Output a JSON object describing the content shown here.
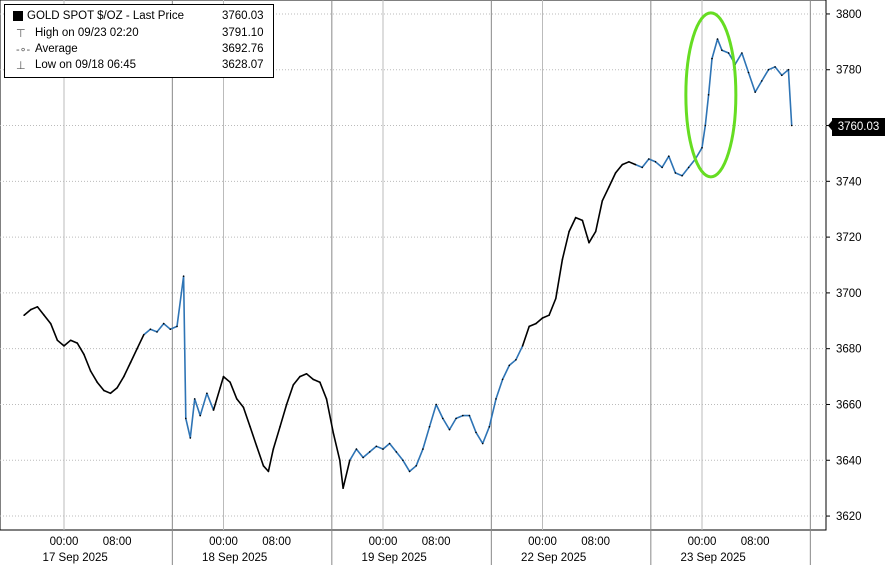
{
  "legend": {
    "series_label": "GOLD SPOT $/OZ - Last Price",
    "last_value": "3760.03",
    "high_label": "High on 09/23 02:20",
    "high_value": "3791.10",
    "avg_label": "Average",
    "avg_value": "3692.76",
    "low_label": "Low on 09/18 06:45",
    "low_value": "3628.07"
  },
  "last_price_tag": "3760.03",
  "colors": {
    "line": "#000000",
    "segment_alt": "#2e74b5",
    "highlight": "#66dd22",
    "grid": "#bbbbbb"
  },
  "chart_data": {
    "type": "line",
    "title": "",
    "xlabel": "",
    "ylabel": "",
    "ylim": [
      3615,
      3805
    ],
    "y_ticks": [
      3620,
      3640,
      3660,
      3680,
      3700,
      3720,
      3740,
      3760,
      3780,
      3800
    ],
    "x_tick_labels": [
      "00:00",
      "08:00",
      "00:00",
      "08:00",
      "00:00",
      "08:00",
      "00:00",
      "08:00",
      "00:00",
      "08:00"
    ],
    "day_labels": [
      "17 Sep 2025",
      "18 Sep 2025",
      "19 Sep 2025",
      "22 Sep 2025",
      "23 Sep 2025"
    ],
    "grid": true,
    "legend_position": "top-left",
    "annotation": "green ellipse around 23 Sep 00:00–04:00 price jump",
    "series": [
      {
        "name": "GOLD SPOT $/OZ - Last Price",
        "points": [
          [
            "09-16 18:00",
            3692
          ],
          [
            "09-16 19:00",
            3694
          ],
          [
            "09-16 20:00",
            3695
          ],
          [
            "09-16 21:00",
            3692
          ],
          [
            "09-16 22:00",
            3689
          ],
          [
            "09-16 23:00",
            3683
          ],
          [
            "09-17 00:00",
            3681
          ],
          [
            "09-17 01:00",
            3683
          ],
          [
            "09-17 02:00",
            3682
          ],
          [
            "09-17 03:00",
            3678
          ],
          [
            "09-17 04:00",
            3672
          ],
          [
            "09-17 05:00",
            3668
          ],
          [
            "09-17 06:00",
            3665
          ],
          [
            "09-17 07:00",
            3664
          ],
          [
            "09-17 08:00",
            3666
          ],
          [
            "09-17 09:00",
            3670
          ],
          [
            "09-17 10:00",
            3675
          ],
          [
            "09-17 11:00",
            3680
          ],
          [
            "09-17 12:00",
            3685
          ],
          [
            "09-17 13:00",
            3687
          ],
          [
            "09-17 14:00",
            3686
          ],
          [
            "09-17 15:00",
            3689
          ],
          [
            "09-17 16:00",
            3687
          ],
          [
            "09-17 17:00",
            3688
          ],
          [
            "09-17 18:00",
            3706
          ],
          [
            "09-17 18:20",
            3655
          ],
          [
            "09-17 19:00",
            3648
          ],
          [
            "09-17 19:40",
            3662
          ],
          [
            "09-17 20:30",
            3656
          ],
          [
            "09-17 21:30",
            3664
          ],
          [
            "09-17 22:30",
            3658
          ],
          [
            "09-17 23:30",
            3666
          ],
          [
            "09-18 00:00",
            3670
          ],
          [
            "09-18 01:00",
            3668
          ],
          [
            "09-18 02:00",
            3662
          ],
          [
            "09-18 03:00",
            3659
          ],
          [
            "09-18 04:00",
            3652
          ],
          [
            "09-18 05:00",
            3645
          ],
          [
            "09-18 06:00",
            3638
          ],
          [
            "09-18 06:45",
            3636
          ],
          [
            "09-18 07:30",
            3644
          ],
          [
            "09-18 08:30",
            3652
          ],
          [
            "09-18 09:30",
            3660
          ],
          [
            "09-18 10:30",
            3667
          ],
          [
            "09-18 11:30",
            3670
          ],
          [
            "09-18 12:30",
            3671
          ],
          [
            "09-18 13:30",
            3669
          ],
          [
            "09-18 14:30",
            3668
          ],
          [
            "09-18 15:30",
            3662
          ],
          [
            "09-18 16:30",
            3650
          ],
          [
            "09-18 17:30",
            3640
          ],
          [
            "09-18 18:00",
            3630
          ],
          [
            "09-18 19:00",
            3640
          ],
          [
            "09-18 20:00",
            3644
          ],
          [
            "09-18 21:00",
            3641
          ],
          [
            "09-18 22:00",
            3643
          ],
          [
            "09-18 23:00",
            3645
          ],
          [
            "09-19 00:00",
            3644
          ],
          [
            "09-19 01:00",
            3646
          ],
          [
            "09-19 02:00",
            3643
          ],
          [
            "09-19 03:00",
            3640
          ],
          [
            "09-19 04:00",
            3636
          ],
          [
            "09-19 05:00",
            3638
          ],
          [
            "09-19 06:00",
            3644
          ],
          [
            "09-19 07:00",
            3652
          ],
          [
            "09-19 08:00",
            3660
          ],
          [
            "09-19 09:00",
            3655
          ],
          [
            "09-19 10:00",
            3651
          ],
          [
            "09-19 11:00",
            3655
          ],
          [
            "09-19 12:00",
            3656
          ],
          [
            "09-19 13:00",
            3656
          ],
          [
            "09-19 14:00",
            3650
          ],
          [
            "09-19 15:00",
            3646
          ],
          [
            "09-19 16:00",
            3652
          ],
          [
            "09-19 17:00",
            3662
          ],
          [
            "09-19 18:00",
            3669
          ],
          [
            "09-19 19:00",
            3674
          ],
          [
            "09-19 20:00",
            3676
          ],
          [
            "09-19 21:00",
            3681
          ],
          [
            "09-19 22:00",
            3688
          ],
          [
            "09-19 23:00",
            3689
          ],
          [
            "09-22 00:00",
            3691
          ],
          [
            "09-22 01:00",
            3692
          ],
          [
            "09-22 02:00",
            3698
          ],
          [
            "09-22 03:00",
            3712
          ],
          [
            "09-22 04:00",
            3722
          ],
          [
            "09-22 05:00",
            3727
          ],
          [
            "09-22 06:00",
            3726
          ],
          [
            "09-22 07:00",
            3718
          ],
          [
            "09-22 08:00",
            3722
          ],
          [
            "09-22 09:00",
            3733
          ],
          [
            "09-22 10:00",
            3738
          ],
          [
            "09-22 11:00",
            3743
          ],
          [
            "09-22 12:00",
            3746
          ],
          [
            "09-22 13:00",
            3747
          ],
          [
            "09-22 14:00",
            3746
          ],
          [
            "09-22 15:00",
            3745
          ],
          [
            "09-22 16:00",
            3748
          ],
          [
            "09-22 17:00",
            3747
          ],
          [
            "09-22 18:00",
            3745
          ],
          [
            "09-22 19:00",
            3749
          ],
          [
            "09-22 20:00",
            3743
          ],
          [
            "09-22 21:00",
            3742
          ],
          [
            "09-22 22:00",
            3745
          ],
          [
            "09-22 23:00",
            3748
          ],
          [
            "09-23 00:00",
            3752
          ],
          [
            "09-23 00:30",
            3760
          ],
          [
            "09-23 01:00",
            3771
          ],
          [
            "09-23 01:30",
            3784
          ],
          [
            "09-23 02:20",
            3791
          ],
          [
            "09-23 03:00",
            3787
          ],
          [
            "09-23 04:00",
            3786
          ],
          [
            "09-23 05:00",
            3782
          ],
          [
            "09-23 06:00",
            3786
          ],
          [
            "09-23 07:00",
            3779
          ],
          [
            "09-23 08:00",
            3772
          ],
          [
            "09-23 09:00",
            3776
          ],
          [
            "09-23 10:00",
            3780
          ],
          [
            "09-23 11:00",
            3781
          ],
          [
            "09-23 12:00",
            3778
          ],
          [
            "09-23 13:00",
            3780
          ],
          [
            "09-23 13:30",
            3760
          ]
        ]
      }
    ]
  }
}
